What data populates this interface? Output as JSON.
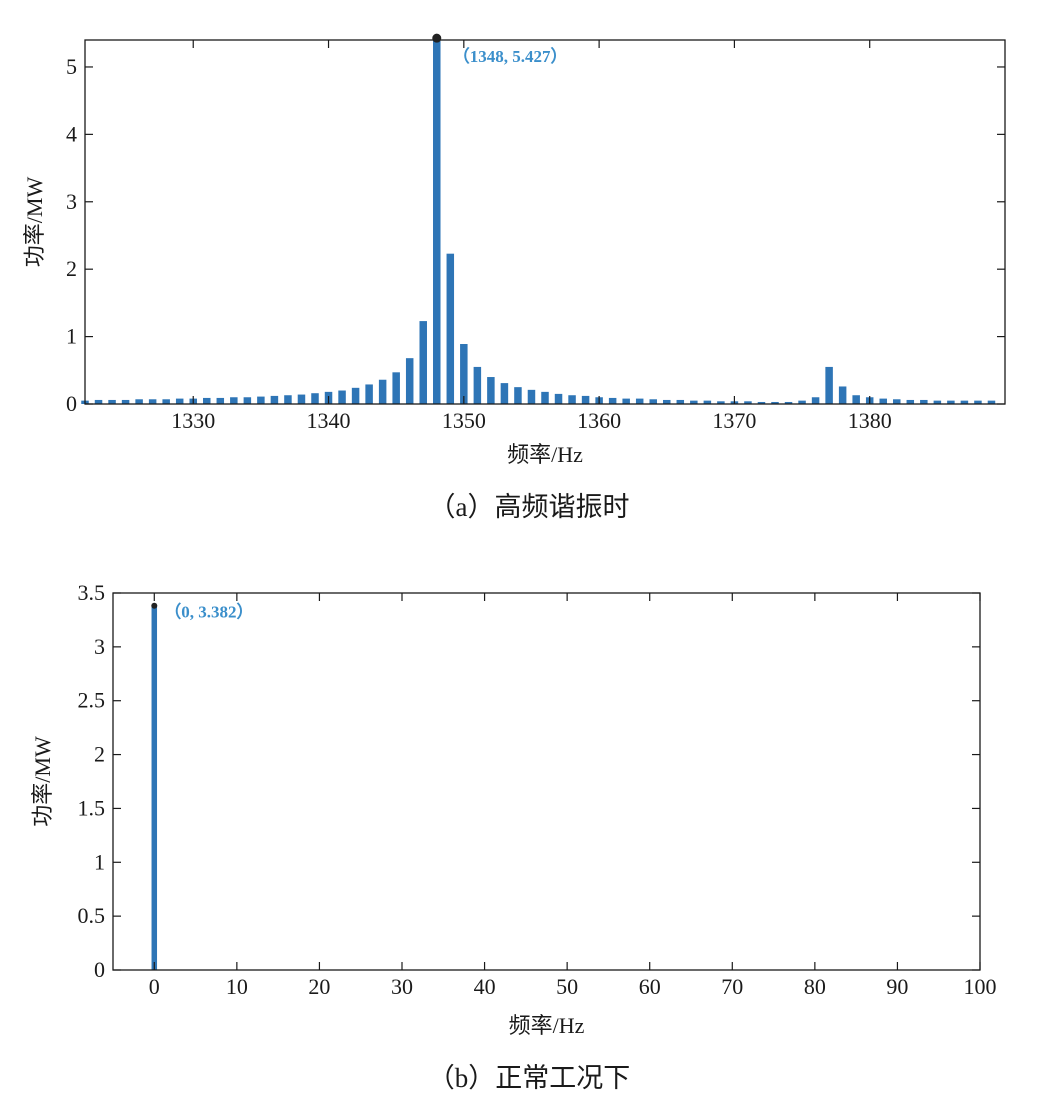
{
  "colors": {
    "bar": "#2e75b6",
    "annotation": "#3b8fcb",
    "marker": "#222222",
    "axis": "#1a1a1a"
  },
  "chart_data": [
    {
      "type": "bar",
      "panel": "a",
      "caption": "（a）高频谐振时",
      "xlabel": "频率/Hz",
      "ylabel": "功率/MW",
      "xlim": [
        1322,
        1390
      ],
      "ylim": [
        0,
        5.4
      ],
      "xticks": [
        1330,
        1340,
        1350,
        1360,
        1370,
        1380
      ],
      "yticks": [
        0,
        1,
        2,
        3,
        4,
        5
      ],
      "x": [
        1322,
        1323,
        1324,
        1325,
        1326,
        1327,
        1328,
        1329,
        1330,
        1331,
        1332,
        1333,
        1334,
        1335,
        1336,
        1337,
        1338,
        1339,
        1340,
        1341,
        1342,
        1343,
        1344,
        1345,
        1346,
        1347,
        1348,
        1349,
        1350,
        1351,
        1352,
        1353,
        1354,
        1355,
        1356,
        1357,
        1358,
        1359,
        1360,
        1361,
        1362,
        1363,
        1364,
        1365,
        1366,
        1367,
        1368,
        1369,
        1370,
        1371,
        1372,
        1373,
        1374,
        1375,
        1376,
        1377,
        1378,
        1379,
        1380,
        1381,
        1382,
        1383,
        1384,
        1385,
        1386,
        1387,
        1388,
        1389
      ],
      "values": [
        0.05,
        0.06,
        0.06,
        0.06,
        0.07,
        0.07,
        0.07,
        0.08,
        0.08,
        0.09,
        0.09,
        0.1,
        0.1,
        0.11,
        0.12,
        0.13,
        0.14,
        0.16,
        0.18,
        0.2,
        0.24,
        0.29,
        0.36,
        0.47,
        0.68,
        1.23,
        5.427,
        2.23,
        0.89,
        0.55,
        0.4,
        0.31,
        0.25,
        0.21,
        0.18,
        0.15,
        0.13,
        0.12,
        0.1,
        0.09,
        0.08,
        0.08,
        0.07,
        0.06,
        0.06,
        0.05,
        0.05,
        0.04,
        0.04,
        0.04,
        0.03,
        0.03,
        0.03,
        0.05,
        0.1,
        0.55,
        0.26,
        0.13,
        0.1,
        0.08,
        0.07,
        0.06,
        0.06,
        0.05,
        0.05,
        0.05,
        0.05,
        0.05
      ],
      "annotation": {
        "x": 1348,
        "y": 5.427,
        "text": "（1348, 5.427）"
      }
    },
    {
      "type": "bar",
      "panel": "b",
      "caption": "（b）正常工况下",
      "xlabel": "频率/Hz",
      "ylabel": "功率/MW",
      "xlim": [
        -5,
        100
      ],
      "ylim": [
        0,
        3.5
      ],
      "xticks": [
        0,
        10,
        20,
        30,
        40,
        50,
        60,
        70,
        80,
        90,
        100
      ],
      "yticks": [
        0,
        0.5,
        1,
        1.5,
        2,
        2.5,
        3,
        3.5
      ],
      "x": [
        0
      ],
      "values": [
        3.382
      ],
      "annotation": {
        "x": 0,
        "y": 3.382,
        "text": "（0, 3.382）"
      }
    }
  ]
}
